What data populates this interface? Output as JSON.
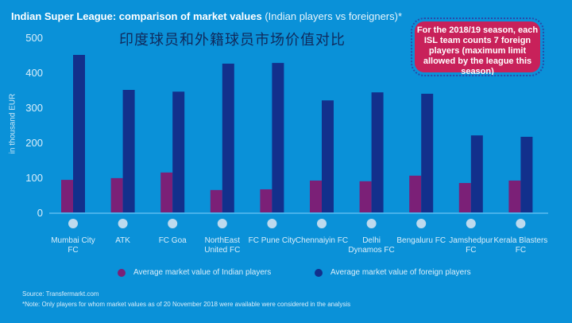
{
  "header": {
    "title_bold": "Indian Super League: comparison of market values",
    "title_light": "(Indian players vs foreigners)*",
    "chinese_title": "印度球员和外籍球员市场价值对比"
  },
  "callout": {
    "text": "For the 2018/19 season, each ISL team counts 7 foreign players (maximum limit allowed by the league this season)"
  },
  "legend": {
    "indian": "Average market value of Indian players",
    "foreign": "Average market value of foreign players"
  },
  "footer": {
    "source": "Source: Transfermarkt.com",
    "note": "*Note: Only players for whom market values as of 20 November 2018 were available were considered in the analysis"
  },
  "colors": {
    "background": "#0a91d8",
    "indian": "#7b2077",
    "foreign": "#12308c",
    "callout": "#c8215a"
  },
  "chart_data": {
    "type": "bar",
    "title": "Indian Super League: comparison of market values (Indian players vs foreigners)*",
    "xlabel": "",
    "ylabel": "in thousand EUR",
    "ylim": [
      0,
      500
    ],
    "yticks": [
      0,
      100,
      200,
      300,
      400,
      500
    ],
    "grid": false,
    "legend_position": "bottom",
    "categories": [
      "Mumbai City FC",
      "ATK",
      "FC Goa",
      "NorthEast United FC",
      "FC Pune City",
      "Chennaiyin FC",
      "Delhi Dynamos FC",
      "Bengaluru FC",
      "Jamshedpur FC",
      "Kerala Blasters FC"
    ],
    "category_lines": [
      [
        "Mumbai City",
        "FC"
      ],
      [
        "ATK"
      ],
      [
        "FC Goa"
      ],
      [
        "NorthEast",
        "United FC"
      ],
      [
        "FC Pune City"
      ],
      [
        "Chennaiyin FC"
      ],
      [
        "Delhi",
        "Dynamos FC"
      ],
      [
        "Bengaluru FC"
      ],
      [
        "Jamshedpur",
        "FC"
      ],
      [
        "Kerala Blasters",
        "FC"
      ]
    ],
    "series": [
      {
        "name": "Average market value of Indian players",
        "values": [
          93,
          98,
          114,
          64,
          66,
          91,
          89,
          105,
          84,
          91
        ]
      },
      {
        "name": "Average market value of foreign players",
        "values": [
          450,
          350,
          345,
          425,
          427,
          320,
          343,
          339,
          220,
          216
        ]
      }
    ]
  }
}
